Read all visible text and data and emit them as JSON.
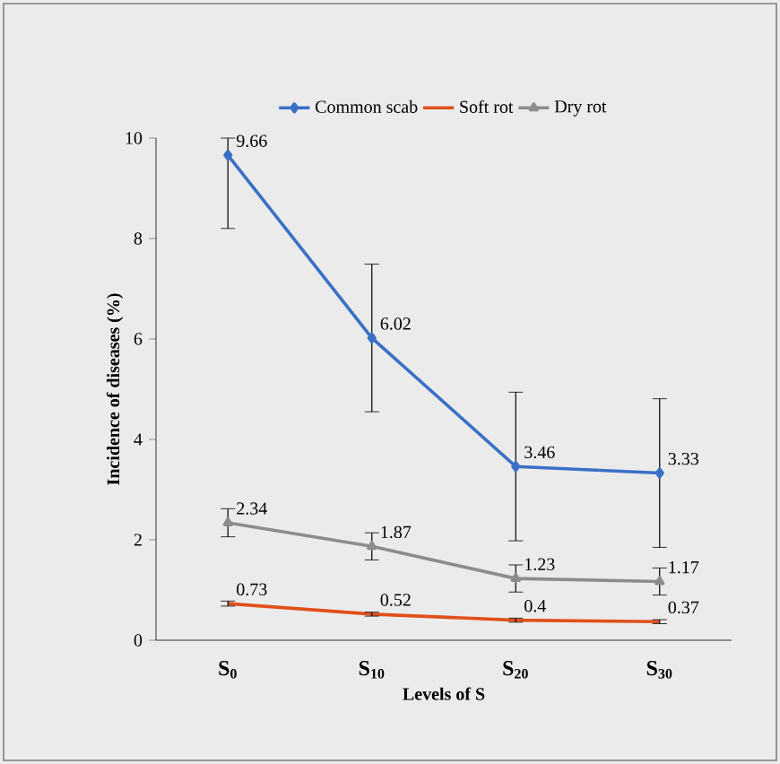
{
  "chart_data": {
    "type": "line",
    "xlabel": "Levels of  S",
    "ylabel": "Incidence of diseases (%)",
    "categories": [
      "S$_{0}$",
      "S$_{10}$",
      "S$_{20}$",
      "S$_{30}$"
    ],
    "ylim": [
      0,
      10
    ],
    "yticks": [
      0,
      2,
      4,
      6,
      8,
      10
    ],
    "legend": "top",
    "data_labels": true,
    "grid": false,
    "series": [
      {
        "name": "Common scab",
        "color": "#3a70c6",
        "marker": "diamond",
        "values": [
          9.66,
          6.02,
          3.46,
          3.33
        ],
        "errors": [
          [
            8.2,
            10
          ],
          1.47,
          1.48,
          1.48
        ]
      },
      {
        "name": "Soft rot",
        "color": "#e0501a",
        "marker": "none",
        "values": [
          0.73,
          0.52,
          0.4,
          0.37
        ],
        "errors": [
          0.05,
          0.04,
          0.04,
          0.04
        ]
      },
      {
        "name": "Dry rot",
        "color": "#8c8c8c",
        "marker": "triangle",
        "values": [
          2.34,
          1.87,
          1.23,
          1.17
        ],
        "errors": [
          0.28,
          0.27,
          0.27,
          0.27
        ]
      }
    ]
  }
}
